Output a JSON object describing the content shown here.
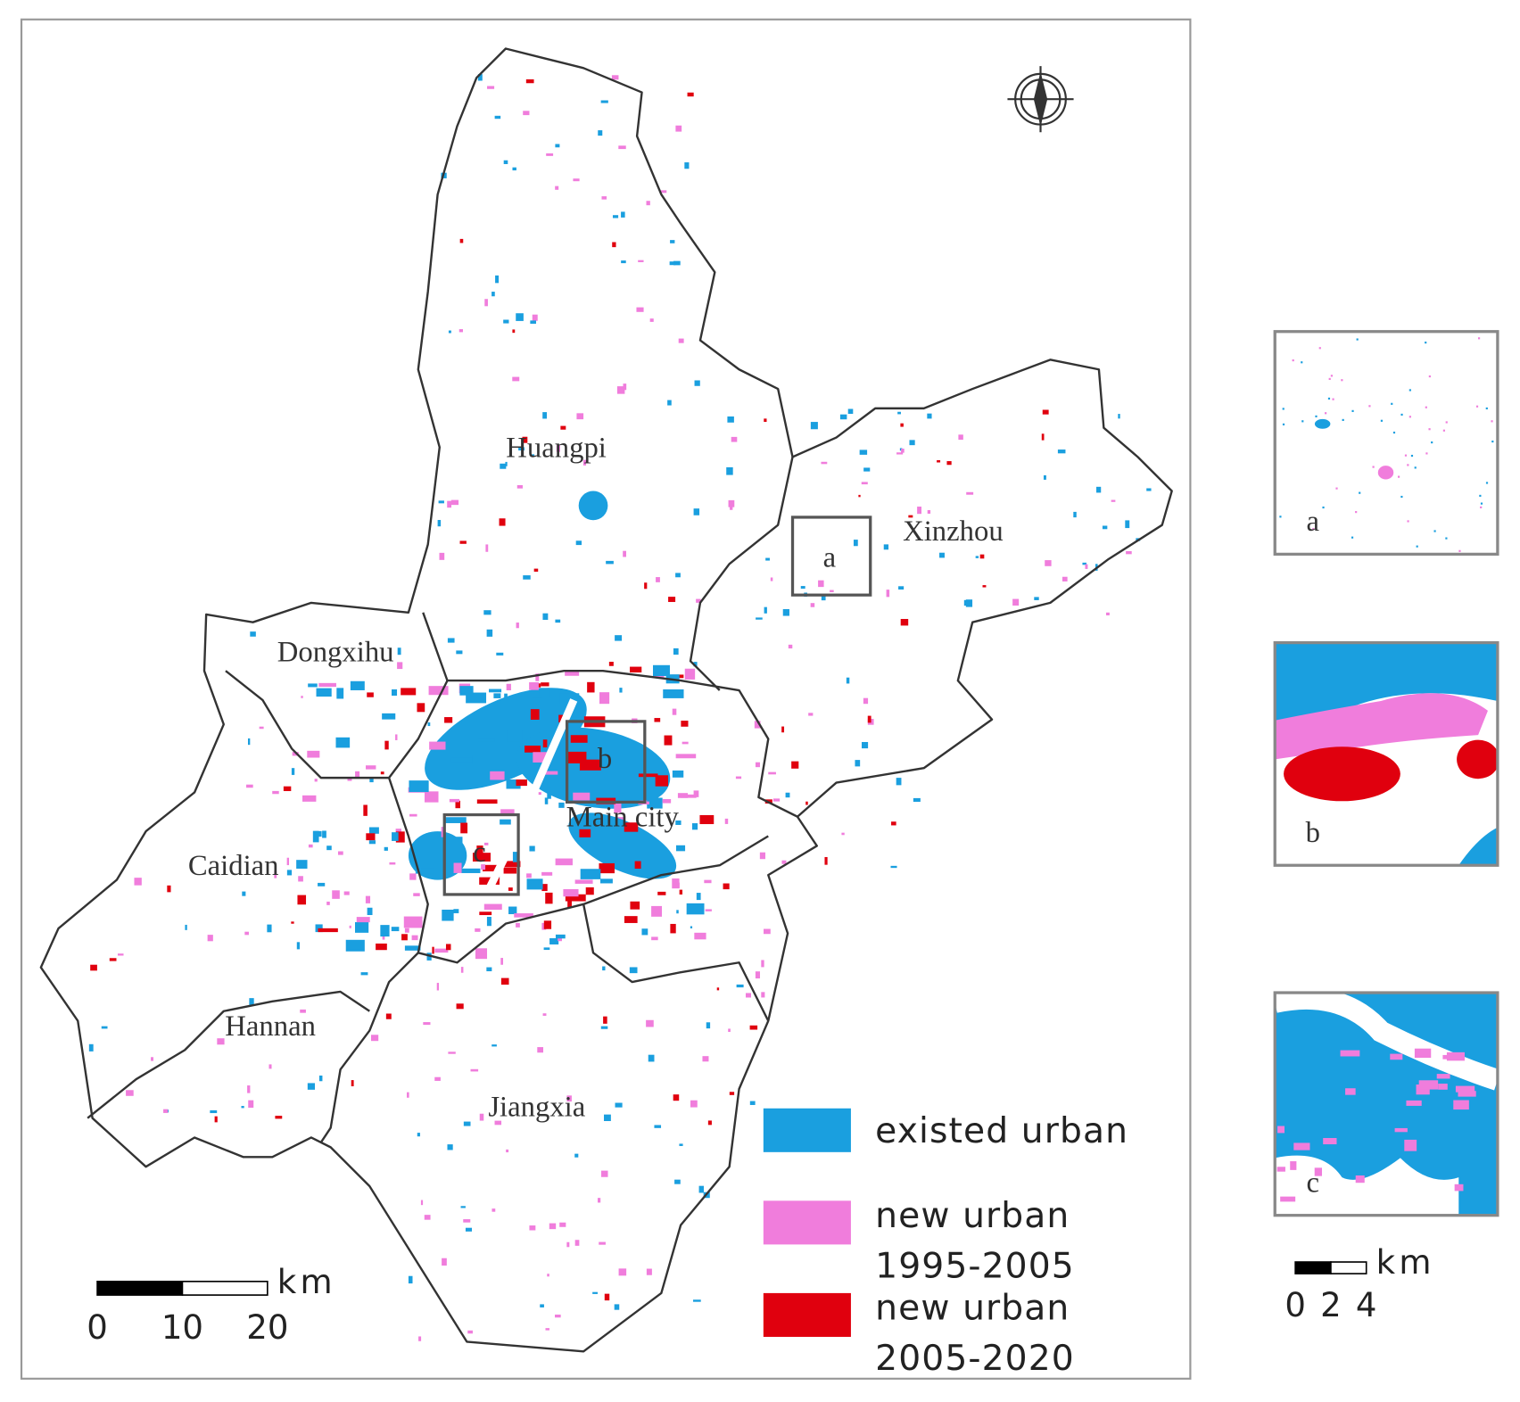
{
  "map": {
    "districts": [
      {
        "label": "Huangpi"
      },
      {
        "label": "Xinzhou"
      },
      {
        "label": "Dongxihu"
      },
      {
        "label": "Main city"
      },
      {
        "label": "Caidian"
      },
      {
        "label": "Hannan"
      },
      {
        "label": "Jiangxia"
      }
    ],
    "insets": [
      {
        "label": "a"
      },
      {
        "label": "b"
      },
      {
        "label": "c"
      }
    ],
    "legend": [
      {
        "lines": [
          "existed urban"
        ],
        "color": "#1a9fdf"
      },
      {
        "lines": [
          "new urban",
          "1995-2005"
        ],
        "color": "#f07ddc"
      },
      {
        "lines": [
          "new urban",
          "2005-2020"
        ],
        "color": "#e0000e"
      }
    ],
    "scale_bars": [
      {
        "unit": "km",
        "ticks": [
          0,
          10,
          20
        ]
      },
      {
        "unit": "km",
        "ticks": [
          0,
          2,
          4
        ]
      }
    ]
  }
}
